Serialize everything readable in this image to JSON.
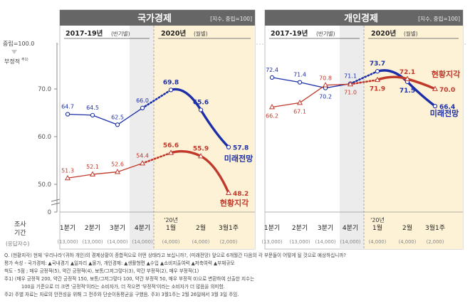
{
  "panels": [
    {
      "title": "국가경제",
      "unit_note": "[지수, 중립=100]"
    },
    {
      "title": "개인경제",
      "unit_note": "[지수, 중립=100]"
    }
  ],
  "axis": {
    "neutral_label": "중립=100.0",
    "negative_label": "부정적",
    "negative_sup": "주1)",
    "yticks": [
      "70.0",
      "60.0",
      "50.0",
      "0"
    ],
    "period_label_left": "2017-19년",
    "period_sub_left": "(반기별)",
    "period_label_right": "2020년",
    "period_sub_right": "(월별)",
    "survey_label_line1": "조사",
    "survey_label_line2": "기간",
    "respondents_label": "(응답자수)"
  },
  "categories": [
    {
      "label": "1분기",
      "n": "(13,000)",
      "prefix": ""
    },
    {
      "label": "2분기",
      "n": "(13,000)",
      "prefix": ""
    },
    {
      "label": "3분기",
      "n": "(14,000)",
      "prefix": ""
    },
    {
      "label": "4분기",
      "n": "(14,000)",
      "prefix": ""
    },
    {
      "label": "1월",
      "n": "(4,000)",
      "prefix": "'20년"
    },
    {
      "label": "2월",
      "n": "(4,000)",
      "prefix": ""
    },
    {
      "label": "3월1주",
      "n": "(2,000)",
      "prefix": ""
    }
  ],
  "chart_data": [
    {
      "type": "line",
      "title": "국가경제",
      "categories": [
        "1분기",
        "2분기",
        "3분기",
        "4분기",
        "1월",
        "2월",
        "3월1주"
      ],
      "ylim": [
        0,
        100
      ],
      "series": [
        {
          "name": "미래전망",
          "color": "#1c2fa8",
          "values": [
            64.7,
            64.5,
            62.5,
            66.0,
            69.8,
            65.6,
            57.8
          ]
        },
        {
          "name": "현황지각",
          "color": "#c0392b",
          "values": [
            51.3,
            52.1,
            52.6,
            54.4,
            56.6,
            55.9,
            48.2
          ]
        }
      ]
    },
    {
      "type": "line",
      "title": "개인경제",
      "categories": [
        "1분기",
        "2분기",
        "3분기",
        "4분기",
        "1월",
        "2월",
        "3월1주"
      ],
      "ylim": [
        0,
        100
      ],
      "series": [
        {
          "name": "미래전망",
          "color": "#1c2fa8",
          "values": [
            72.4,
            71.4,
            70.2,
            71.1,
            73.7,
            71.5,
            66.4
          ]
        },
        {
          "name": "현황지각",
          "color": "#c0392b",
          "values": [
            66.2,
            67.1,
            70.8,
            71.0,
            71.9,
            72.1,
            70.0
          ]
        }
      ]
    }
  ],
  "footnotes": [
    "Q. (현황지각) 현재 '우리나라'(귀하 개인)의 경제상황이 종합적으로 어떤 상태라고 보십니까?, (미래전망) 앞으로 6개월간 다음의 각 부문들이 어떻게 될 것으로 예상하십니까?",
    "평가 속성 - 국가경제: ▲국내경기 ▲일자리 ▲물가, 개인경제: ▲생활형편 ▲수입 ▲소비지출여력 ▲저축여력 ▲부채규모",
    "척도 - 5점 ; 매우 긍정적(5), 약간 긍정적(4), 보통/그저그렇다(3), 약간 부정적(2), 매우 부정적(1)",
    "주1) (매우 긍정적 200, 약간 긍정적 150, 보통/그저그렇다 100, 약간 부정적 50, 매우 부정적 0)으로 변환하여 산출한 지수는",
    "100을 기준으로 더 크면 '긍정적'이라는 소비자가, 더 작으면 '부정적'이라는 소비자가 더 많음을 의미함.",
    "주2) 주별 자료는 자료의 안전성을 위해 그 전주와 단순이동평균을 구했음.  주3) 3월1주는 2월 26일에서 3월 3일 주임."
  ]
}
